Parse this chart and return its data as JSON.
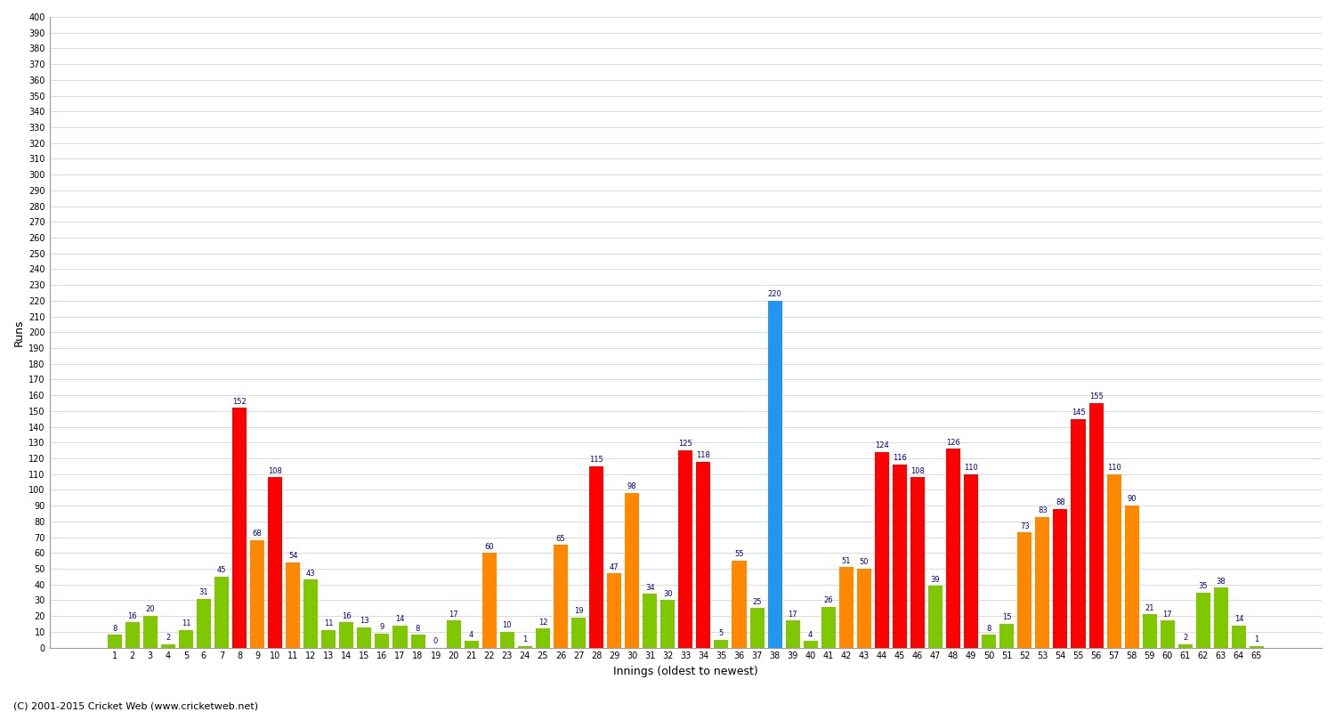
{
  "title": "",
  "xlabel": "Innings (oldest to newest)",
  "ylabel": "Runs",
  "ylim": [
    0,
    400
  ],
  "background_color": "#ffffff",
  "grid_color": "#cccccc",
  "innings": [
    "1",
    "2",
    "3",
    "4",
    "5",
    "6",
    "7",
    "8",
    "9",
    "10",
    "11",
    "12",
    "13",
    "14",
    "15",
    "16",
    "17",
    "18",
    "19",
    "20",
    "21",
    "22",
    "23",
    "24",
    "25",
    "26",
    "27",
    "28",
    "29",
    "30",
    "31",
    "32",
    "33",
    "34",
    "35",
    "36",
    "37",
    "38",
    "39",
    "40",
    "41",
    "42",
    "43",
    "44",
    "45",
    "46",
    "47",
    "48",
    "49",
    "50",
    "51",
    "52",
    "53",
    "54",
    "55",
    "56",
    "57",
    "58",
    "59",
    "60",
    "61",
    "62",
    "63",
    "64",
    "65"
  ],
  "values": [
    8,
    16,
    20,
    2,
    11,
    31,
    45,
    152,
    68,
    108,
    54,
    43,
    11,
    16,
    13,
    9,
    14,
    8,
    0,
    17,
    4,
    60,
    10,
    1,
    12,
    65,
    19,
    115,
    47,
    98,
    34,
    30,
    125,
    118,
    5,
    55,
    25,
    220,
    17,
    4,
    26,
    51,
    50,
    124,
    116,
    108,
    39,
    126,
    110,
    8,
    15,
    73,
    83,
    88,
    145,
    155,
    110,
    90,
    21,
    17,
    2,
    35,
    38,
    14,
    1
  ],
  "colors": [
    "#7fc800",
    "#7fc800",
    "#7fc800",
    "#7fc800",
    "#7fc800",
    "#7fc800",
    "#7fc800",
    "#ff0000",
    "#ff8800",
    "#ff0000",
    "#ff8800",
    "#7fc800",
    "#7fc800",
    "#7fc800",
    "#7fc800",
    "#7fc800",
    "#7fc800",
    "#7fc800",
    "#7fc800",
    "#7fc800",
    "#7fc800",
    "#ff8800",
    "#7fc800",
    "#7fc800",
    "#7fc800",
    "#ff8800",
    "#7fc800",
    "#ff0000",
    "#ff8800",
    "#ff8800",
    "#7fc800",
    "#7fc800",
    "#ff0000",
    "#ff0000",
    "#7fc800",
    "#ff8800",
    "#7fc800",
    "#2196f3",
    "#7fc800",
    "#7fc800",
    "#7fc800",
    "#ff8800",
    "#ff8800",
    "#ff0000",
    "#ff0000",
    "#ff0000",
    "#7fc800",
    "#ff0000",
    "#ff0000",
    "#7fc800",
    "#7fc800",
    "#ff8800",
    "#ff8800",
    "#ff0000",
    "#ff0000",
    "#ff0000",
    "#ff8800",
    "#ff8800",
    "#7fc800",
    "#7fc800",
    "#7fc800",
    "#7fc800",
    "#7fc800",
    "#7fc800",
    "#7fc800"
  ],
  "label_color": "#00008b",
  "bar_width": 0.8,
  "footer": "(C) 2001-2015 Cricket Web (www.cricketweb.net)"
}
